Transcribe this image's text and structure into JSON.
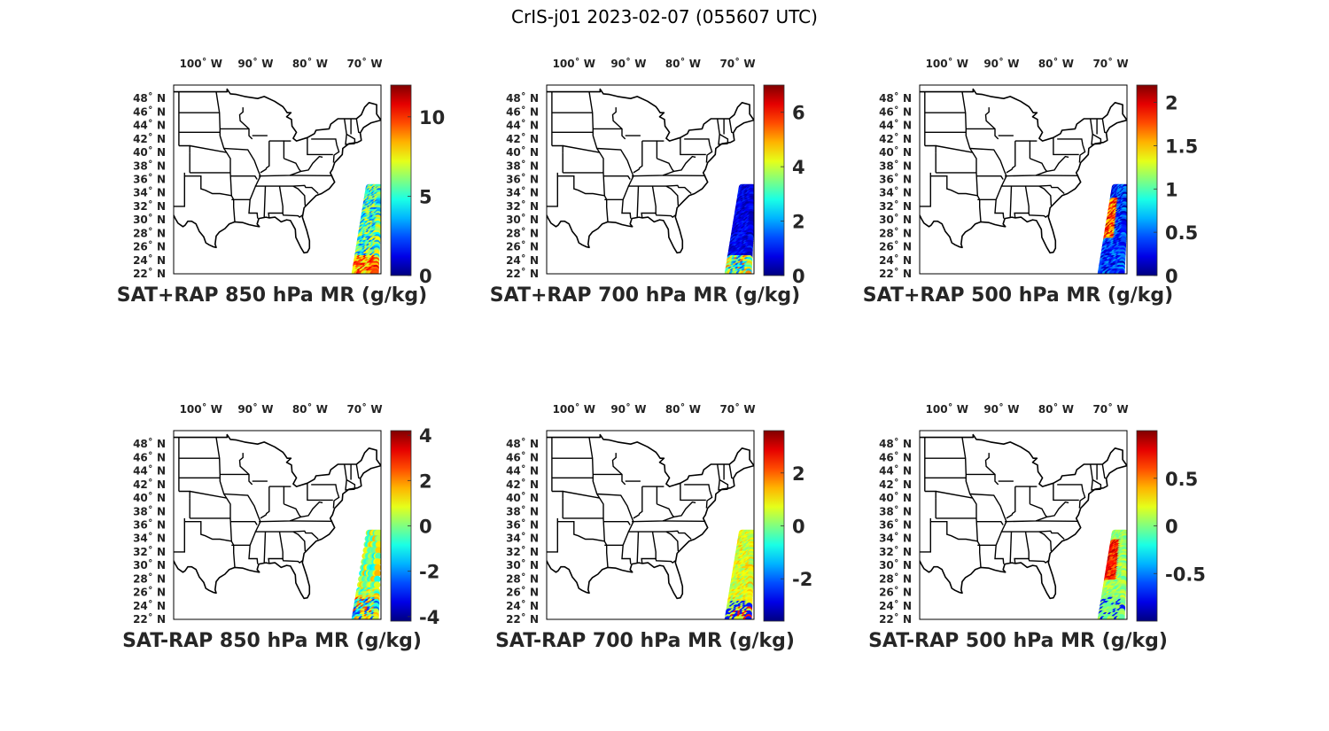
{
  "figure": {
    "title": "CrIS-j01 2023-02-07 (055607 UTC)"
  },
  "map": {
    "lon_ticks": [
      "100˚ W",
      "90˚ W",
      "80˚ W",
      "70˚ W"
    ],
    "lon_tick_values": [
      -100,
      -90,
      -80,
      -70
    ],
    "lat_ticks": [
      "48˚ N",
      "46˚ N",
      "44˚ N",
      "42˚ N",
      "40˚ N",
      "38˚ N",
      "36˚ N",
      "34˚ N",
      "32˚ N",
      "30˚ N",
      "28˚ N",
      "26˚ N",
      "24˚ N",
      "22˚ N"
    ],
    "lat_tick_values": [
      48,
      46,
      44,
      42,
      40,
      38,
      36,
      34,
      32,
      30,
      28,
      26,
      24,
      22
    ],
    "lon_range": [
      -105,
      -67
    ],
    "lat_range": [
      22,
      50
    ]
  },
  "colormap": "jet",
  "panels": [
    {
      "id": "sum850",
      "title": "SAT+RAP 850 hPa MR (g/kg)",
      "cbar_range": [
        0,
        12
      ],
      "cbar_ticks": [
        {
          "v": 0,
          "t": "0"
        },
        {
          "v": 5,
          "t": "5"
        },
        {
          "v": 10,
          "t": "10"
        }
      ],
      "swath_type": "sum850"
    },
    {
      "id": "sum700",
      "title": "SAT+RAP 700 hPa MR (g/kg)",
      "cbar_range": [
        0,
        7
      ],
      "cbar_ticks": [
        {
          "v": 0,
          "t": "0"
        },
        {
          "v": 2,
          "t": "2"
        },
        {
          "v": 4,
          "t": "4"
        },
        {
          "v": 6,
          "t": "6"
        }
      ],
      "swath_type": "sum700"
    },
    {
      "id": "sum500",
      "title": "SAT+RAP 500 hPa MR (g/kg)",
      "cbar_range": [
        0,
        2.2
      ],
      "cbar_ticks": [
        {
          "v": 0,
          "t": "0"
        },
        {
          "v": 0.5,
          "t": "0.5"
        },
        {
          "v": 1,
          "t": "1"
        },
        {
          "v": 1.5,
          "t": "1.5"
        },
        {
          "v": 2,
          "t": "2"
        }
      ],
      "swath_type": "sum500"
    },
    {
      "id": "dif850",
      "title": "SAT-RAP 850 hPa MR (g/kg)",
      "cbar_range": [
        -4.2,
        4.2
      ],
      "cbar_ticks": [
        {
          "v": -4,
          "t": "-4"
        },
        {
          "v": -2,
          "t": "-2"
        },
        {
          "v": 0,
          "t": "0"
        },
        {
          "v": 2,
          "t": "2"
        },
        {
          "v": 4,
          "t": "4"
        }
      ],
      "swath_type": "dif850"
    },
    {
      "id": "dif700",
      "title": "SAT-RAP 700 hPa MR (g/kg)",
      "cbar_range": [
        -3.6,
        3.6
      ],
      "cbar_ticks": [
        {
          "v": -2,
          "t": "-2"
        },
        {
          "v": 0,
          "t": "0"
        },
        {
          "v": 2,
          "t": "2"
        }
      ],
      "swath_type": "dif700"
    },
    {
      "id": "dif500",
      "title": "SAT-RAP 500 hPa MR (g/kg)",
      "cbar_range": [
        -1,
        1
      ],
      "cbar_ticks": [
        {
          "v": -0.5,
          "t": "-0.5"
        },
        {
          "v": 0,
          "t": "0"
        },
        {
          "v": 0.5,
          "t": "0.5"
        }
      ],
      "swath_type": "dif500"
    }
  ]
}
